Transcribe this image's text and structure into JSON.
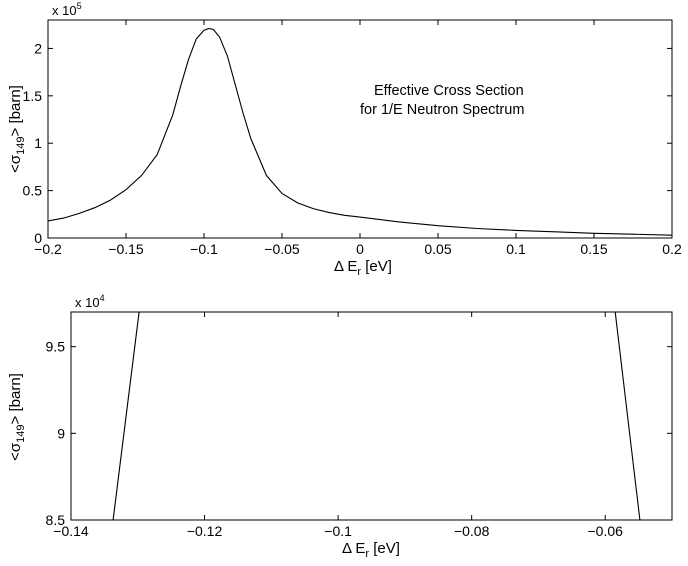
{
  "chart_data": [
    {
      "type": "line",
      "annotation": [
        "Effective Cross Section",
        "for 1/E Neutron Spectrum"
      ],
      "xlabel": {
        "prefix": "Δ E",
        "subscript": "r",
        "suffix": " [eV]"
      },
      "ylabel": {
        "prefix": "<σ",
        "subscript": "149",
        "suffix": "> [barn]"
      },
      "y_multiplier": {
        "base": "x 10",
        "exponent": "5"
      },
      "xlim": [
        -0.2,
        0.2
      ],
      "ylim": [
        0,
        2.3
      ],
      "xticks": [
        "-0.2",
        "-0.15",
        "-0.1",
        "-0.05",
        "0",
        "0.05",
        "0.1",
        "0.15",
        "0.2"
      ],
      "yticks": [
        "0",
        "0.5",
        "1",
        "1.5",
        "2"
      ],
      "grid": false,
      "series": [
        {
          "x": [
            -0.2,
            -0.19,
            -0.18,
            -0.17,
            -0.16,
            -0.15,
            -0.14,
            -0.13,
            -0.12,
            -0.115,
            -0.11,
            -0.105,
            -0.1,
            -0.097,
            -0.094,
            -0.09,
            -0.085,
            -0.08,
            -0.075,
            -0.07,
            -0.06,
            -0.05,
            -0.04,
            -0.03,
            -0.02,
            -0.01,
            0,
            0.025,
            0.05,
            0.075,
            0.1,
            0.125,
            0.15,
            0.175,
            0.2
          ],
          "y": [
            0.18,
            0.21,
            0.26,
            0.32,
            0.4,
            0.51,
            0.66,
            0.88,
            1.3,
            1.6,
            1.88,
            2.1,
            2.19,
            2.21,
            2.2,
            2.12,
            1.92,
            1.62,
            1.32,
            1.05,
            0.66,
            0.47,
            0.37,
            0.31,
            0.27,
            0.24,
            0.22,
            0.17,
            0.13,
            0.1,
            0.08,
            0.065,
            0.05,
            0.04,
            0.03
          ]
        }
      ]
    },
    {
      "type": "line",
      "xlabel": {
        "prefix": "Δ E",
        "subscript": "r",
        "suffix": " [eV]"
      },
      "ylabel": {
        "prefix": "<σ",
        "subscript": "149",
        "suffix": "> [barn]"
      },
      "y_multiplier": {
        "base": "x 10",
        "exponent": "4"
      },
      "xlim": [
        -0.14,
        -0.05
      ],
      "ylim": [
        8.5,
        9.7
      ],
      "xticks": [
        "-0.14",
        "-0.12",
        "-0.1",
        "-0.08",
        "-0.06"
      ],
      "yticks": [
        "8.5",
        "9",
        "9.5"
      ],
      "grid": false,
      "series": [
        {
          "x": [
            -0.1337,
            -0.1298
          ],
          "y": [
            8.5,
            9.7
          ]
        },
        {
          "x": [
            -0.0585,
            -0.0548
          ],
          "y": [
            9.7,
            8.5
          ]
        }
      ]
    }
  ]
}
